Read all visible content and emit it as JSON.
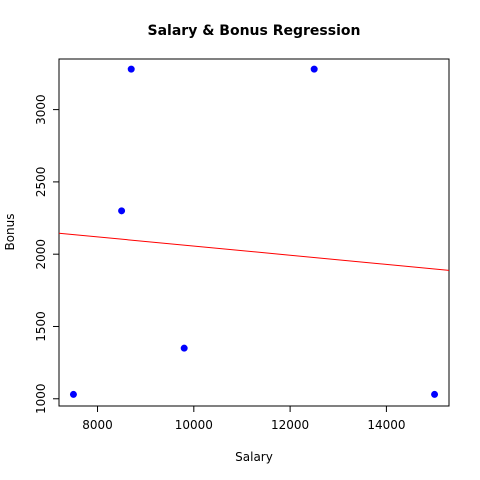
{
  "chart_data": {
    "type": "scatter",
    "title": "Salary & Bonus Regression",
    "xlabel": "Salary",
    "ylabel": "Bonus",
    "xlim": [
      7200,
      15300
    ],
    "ylim": [
      950,
      3350
    ],
    "x_ticks": [
      8000,
      10000,
      12000,
      14000
    ],
    "y_ticks": [
      1000,
      1500,
      2000,
      2500,
      3000
    ],
    "x_tick_labels": [
      "8000",
      "10000",
      "12000",
      "14000"
    ],
    "y_tick_labels": [
      "1000",
      "1500",
      "2000",
      "2500",
      "3000"
    ],
    "grid": false,
    "point_color": "#0000ff",
    "line_color": "#ff0000",
    "points": [
      {
        "x": 7500,
        "y": 1030
      },
      {
        "x": 8500,
        "y": 2300
      },
      {
        "x": 8700,
        "y": 3280
      },
      {
        "x": 9800,
        "y": 1350
      },
      {
        "x": 12500,
        "y": 3280
      },
      {
        "x": 15000,
        "y": 1030
      }
    ],
    "regression_line": {
      "x": [
        7200,
        15300
      ],
      "y": [
        2145,
        1888
      ]
    }
  }
}
